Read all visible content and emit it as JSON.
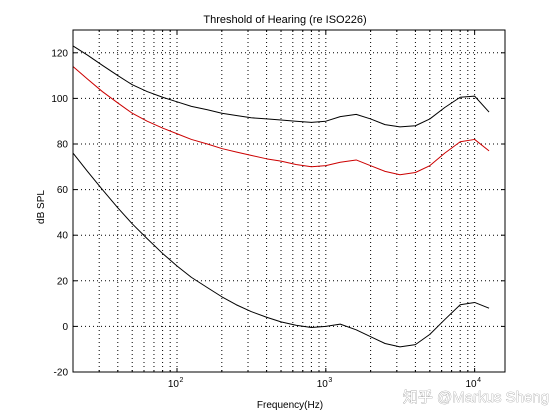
{
  "chart_data": {
    "type": "line",
    "title": "Threshold of Hearing (re ISO226)",
    "xlabel": "Frequency(Hz)",
    "ylabel": "dB SPL",
    "x_scale": "log",
    "xlim": [
      20,
      16000
    ],
    "ylim": [
      -20,
      130
    ],
    "yticks": [
      -20,
      0,
      20,
      40,
      60,
      80,
      100,
      120
    ],
    "xticks": [
      {
        "value": 100,
        "base": "10",
        "exp": "2"
      },
      {
        "value": 1000,
        "base": "10",
        "exp": "3"
      },
      {
        "value": 10000,
        "base": "10",
        "exp": "4"
      }
    ],
    "grid": true,
    "series": [
      {
        "color": "#000000",
        "points": [
          [
            20,
            123
          ],
          [
            25,
            119
          ],
          [
            31.5,
            114.5
          ],
          [
            40,
            110
          ],
          [
            50,
            106
          ],
          [
            63,
            103
          ],
          [
            80,
            100.5
          ],
          [
            100,
            98.5
          ],
          [
            125,
            96.5
          ],
          [
            160,
            95
          ],
          [
            200,
            93.5
          ],
          [
            250,
            92.5
          ],
          [
            315,
            91.5
          ],
          [
            400,
            91
          ],
          [
            500,
            90.5
          ],
          [
            630,
            90
          ],
          [
            800,
            89.5
          ],
          [
            1000,
            90
          ],
          [
            1250,
            92
          ],
          [
            1600,
            93
          ],
          [
            2000,
            91
          ],
          [
            2500,
            88.5
          ],
          [
            3150,
            87.5
          ],
          [
            4000,
            88
          ],
          [
            5000,
            91
          ],
          [
            6300,
            96
          ],
          [
            8000,
            100.5
          ],
          [
            10000,
            101
          ],
          [
            12500,
            94
          ]
        ]
      },
      {
        "color": "#cc0000",
        "points": [
          [
            20,
            114
          ],
          [
            25,
            108.5
          ],
          [
            31.5,
            103
          ],
          [
            40,
            98
          ],
          [
            50,
            93.5
          ],
          [
            63,
            90
          ],
          [
            80,
            87
          ],
          [
            100,
            84.5
          ],
          [
            125,
            82
          ],
          [
            160,
            80
          ],
          [
            200,
            78
          ],
          [
            250,
            76.5
          ],
          [
            315,
            75
          ],
          [
            400,
            73.5
          ],
          [
            500,
            72.5
          ],
          [
            630,
            71
          ],
          [
            800,
            70
          ],
          [
            1000,
            70.5
          ],
          [
            1250,
            72
          ],
          [
            1600,
            73
          ],
          [
            2000,
            70.5
          ],
          [
            2500,
            68
          ],
          [
            3150,
            66.5
          ],
          [
            4000,
            67.5
          ],
          [
            5000,
            70.5
          ],
          [
            6300,
            76
          ],
          [
            8000,
            81
          ],
          [
            10000,
            82
          ],
          [
            12500,
            77
          ]
        ]
      },
      {
        "color": "#000000",
        "points": [
          [
            20,
            76
          ],
          [
            25,
            68
          ],
          [
            31.5,
            60
          ],
          [
            40,
            52
          ],
          [
            50,
            45
          ],
          [
            63,
            38.5
          ],
          [
            80,
            32
          ],
          [
            100,
            26.5
          ],
          [
            125,
            21.5
          ],
          [
            160,
            17
          ],
          [
            200,
            13
          ],
          [
            250,
            9.5
          ],
          [
            315,
            6.5
          ],
          [
            400,
            4
          ],
          [
            500,
            2
          ],
          [
            630,
            0.5
          ],
          [
            800,
            -0.5
          ],
          [
            1000,
            0
          ],
          [
            1250,
            1
          ],
          [
            1600,
            -1.5
          ],
          [
            2000,
            -4.5
          ],
          [
            2500,
            -7.5
          ],
          [
            3150,
            -9
          ],
          [
            4000,
            -8
          ],
          [
            5000,
            -3.5
          ],
          [
            6300,
            3
          ],
          [
            8000,
            9.5
          ],
          [
            10000,
            10.5
          ],
          [
            12500,
            8
          ]
        ]
      }
    ]
  },
  "watermark": "知乎 @Markus Sheng"
}
